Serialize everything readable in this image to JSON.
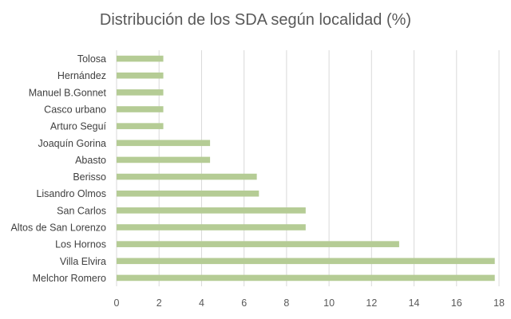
{
  "chart_data": {
    "type": "bar",
    "orientation": "horizontal",
    "title": "Distribución de los SDA según localidad (%)",
    "xlabel": "",
    "ylabel": "",
    "categories": [
      "Tolosa",
      "Hernández",
      "Manuel B.Gonnet",
      "Casco urbano",
      "Arturo Seguí",
      "Joaquín Gorina",
      "Abasto",
      "Berisso",
      "Lisandro Olmos",
      "San Carlos",
      "Altos de San Lorenzo",
      "Los Hornos",
      "Villa Elvira",
      "Melchor Romero"
    ],
    "values": [
      2.2,
      2.2,
      2.2,
      2.2,
      2.2,
      4.4,
      4.4,
      6.6,
      6.7,
      8.9,
      8.9,
      13.3,
      17.8,
      17.8
    ],
    "xlim": [
      0,
      18
    ],
    "xticks": [
      0,
      2,
      4,
      6,
      8,
      10,
      12,
      14,
      16,
      18
    ],
    "grid": true,
    "legend": "none",
    "bar_color": "#b5cc95",
    "grid_color": "#d9d9d9"
  }
}
